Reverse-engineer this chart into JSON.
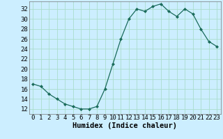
{
  "x": [
    0,
    1,
    2,
    3,
    4,
    5,
    6,
    7,
    8,
    9,
    10,
    11,
    12,
    13,
    14,
    15,
    16,
    17,
    18,
    19,
    20,
    21,
    22,
    23
  ],
  "y": [
    17,
    16.5,
    15,
    14,
    13,
    12.5,
    12,
    12,
    12.5,
    16,
    21,
    26,
    30,
    32,
    31.5,
    32.5,
    33,
    31.5,
    30.5,
    32,
    31,
    28,
    25.5,
    24.5
  ],
  "line_color": "#1a6b5a",
  "marker_color": "#1a6b5a",
  "bg_color": "#cceeff",
  "grid_color": "#aaddcc",
  "xlabel": "Humidex (Indice chaleur)",
  "ylabel_ticks": [
    12,
    14,
    16,
    18,
    20,
    22,
    24,
    26,
    28,
    30,
    32
  ],
  "ylim": [
    11,
    33.5
  ],
  "xlim": [
    -0.5,
    23.5
  ],
  "xticks": [
    0,
    1,
    2,
    3,
    4,
    5,
    6,
    7,
    8,
    9,
    10,
    11,
    12,
    13,
    14,
    15,
    16,
    17,
    18,
    19,
    20,
    21,
    22,
    23
  ],
  "xlabel_fontsize": 7.5,
  "tick_fontsize": 6.5
}
